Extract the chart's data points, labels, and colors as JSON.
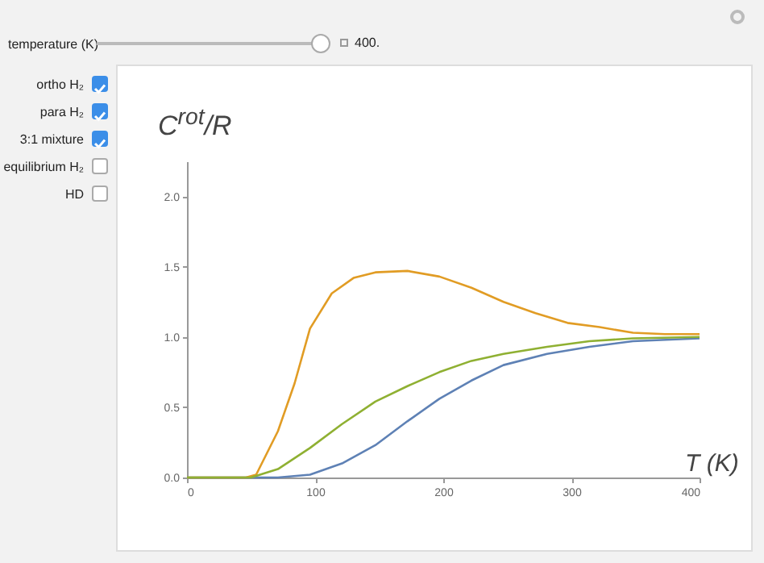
{
  "chart_data": {
    "type": "line",
    "xlabel": "T (K)",
    "ylabel": "C$^{rot}$/R",
    "annotations": [
      "temperature (K)",
      "400.",
      "ortho H₂",
      "para H₂",
      "3:1 mixture",
      "equilibrium H₂",
      "HD"
    ],
    "xlim": [
      0,
      400
    ],
    "xticks": [
      0,
      100,
      200,
      300,
      400
    ],
    "ylim": [
      0,
      2.25
    ],
    "yticks": [
      {
        "value": 0,
        "label": "0.0"
      },
      {
        "value": 0.5,
        "label": "0.5"
      },
      {
        "value": 1,
        "label": "1.0"
      },
      {
        "value": 1.5,
        "label": "1.5"
      },
      {
        "value": 2,
        "label": "2.0"
      }
    ],
    "grid": false,
    "marker": "none",
    "line_style": "solid",
    "series": [
      {
        "color": "#5e81b5",
        "x": [
          0,
          71,
          96,
          121,
          147,
          172,
          197,
          222,
          247,
          281,
          314,
          348,
          400
        ],
        "values": [
          0,
          0,
          0.02,
          0.1,
          0.23,
          0.4,
          0.56,
          0.69,
          0.8,
          0.88,
          0.93,
          0.97,
          0.99
        ]
      },
      {
        "color": "#e19c24",
        "x": [
          0,
          46,
          54,
          71,
          84,
          96,
          113,
          130,
          147,
          172,
          197,
          222,
          247,
          272,
          297,
          322,
          348,
          373,
          400
        ],
        "values": [
          0,
          0,
          0.02,
          0.33,
          0.67,
          1.06,
          1.31,
          1.42,
          1.46,
          1.47,
          1.43,
          1.35,
          1.25,
          1.17,
          1.1,
          1.07,
          1.03,
          1.02,
          1.02
        ]
      },
      {
        "color": "#8fb032",
        "x": [
          0,
          50,
          71,
          96,
          121,
          147,
          172,
          197,
          222,
          247,
          281,
          314,
          348,
          400
        ],
        "values": [
          0,
          0,
          0.06,
          0.21,
          0.38,
          0.54,
          0.65,
          0.75,
          0.83,
          0.88,
          0.93,
          0.97,
          0.99,
          1.0
        ]
      }
    ]
  }
}
